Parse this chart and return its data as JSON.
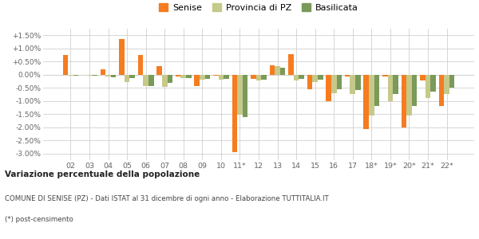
{
  "categories": [
    "02",
    "03",
    "04",
    "05",
    "06",
    "07",
    "08",
    "09",
    "10",
    "11*",
    "12",
    "13",
    "14",
    "15",
    "16",
    "17",
    "18*",
    "19*",
    "20*",
    "21*",
    "22*"
  ],
  "senise": [
    0.75,
    0.0,
    0.2,
    1.35,
    0.75,
    0.32,
    -0.08,
    -0.42,
    -0.05,
    -2.95,
    -0.15,
    0.35,
    0.78,
    -0.55,
    -1.02,
    -0.08,
    -2.08,
    -0.06,
    -2.02,
    -0.22,
    -1.2
  ],
  "provincia": [
    -0.05,
    -0.05,
    -0.08,
    -0.28,
    -0.42,
    -0.45,
    -0.12,
    -0.18,
    -0.18,
    -1.52,
    -0.23,
    0.32,
    -0.22,
    -0.28,
    -0.7,
    -0.75,
    -1.55,
    -1.0,
    -1.55,
    -0.88,
    -0.72
  ],
  "basilicata": [
    -0.05,
    -0.05,
    -0.1,
    -0.12,
    -0.42,
    -0.3,
    -0.12,
    -0.15,
    -0.15,
    -1.6,
    -0.18,
    0.25,
    -0.15,
    -0.18,
    -0.55,
    -0.58,
    -1.2,
    -0.75,
    -1.2,
    -0.65,
    -0.5
  ],
  "senise_color": "#f57c20",
  "provincia_color": "#c5c98a",
  "basilicata_color": "#7a9a5a",
  "bg_color": "#ffffff",
  "grid_color": "#d0d0d0",
  "ylim": [
    -3.25,
    1.75
  ],
  "yticks": [
    -3.0,
    -2.5,
    -2.0,
    -1.5,
    -1.0,
    -0.5,
    0.0,
    0.5,
    1.0,
    1.5
  ],
  "ytick_labels": [
    "-3.00%",
    "-2.50%",
    "-2.00%",
    "-1.50%",
    "-1.00%",
    "-0.50%",
    "0.00%",
    "+0.50%",
    "+1.00%",
    "+1.50%"
  ],
  "title1": "Variazione percentuale della popolazione",
  "title2": "COMUNE DI SENISE (PZ) - Dati ISTAT al 31 dicembre di ogni anno - Elaborazione TUTTITALIA.IT",
  "title3": "(*) post-censimento",
  "legend_labels": [
    "Senise",
    "Provincia di PZ",
    "Basilicata"
  ]
}
